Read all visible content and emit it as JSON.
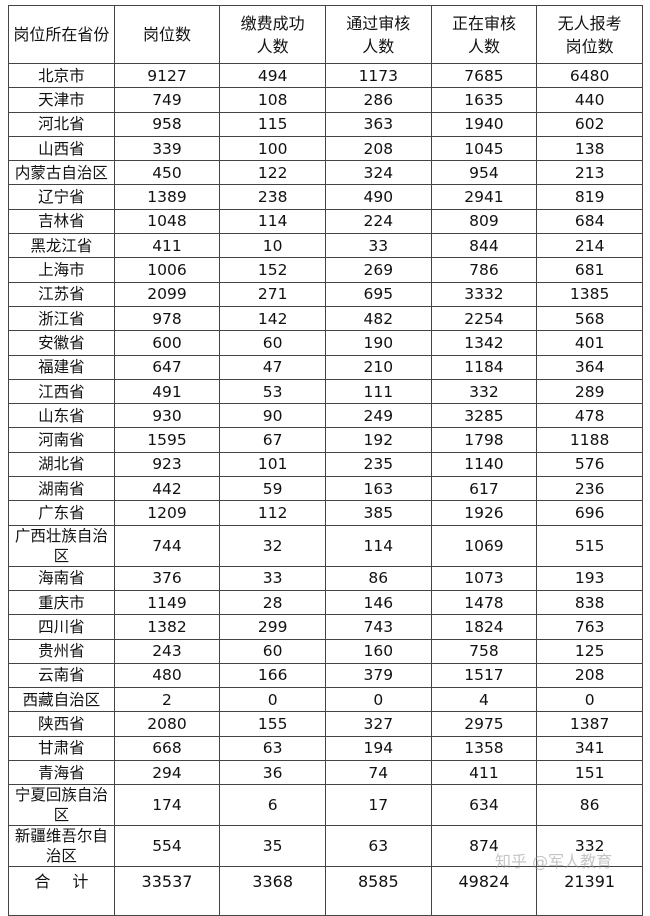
{
  "table": {
    "headers": [
      "岗位所在省份",
      "岗位数",
      "缴费成功\n人数",
      "通过审核\n人数",
      "正在审核\n人数",
      "无人报考\n岗位数"
    ],
    "rows": [
      [
        "北京市",
        "9127",
        "494",
        "1173",
        "7685",
        "6480"
      ],
      [
        "天津市",
        "749",
        "108",
        "286",
        "1635",
        "440"
      ],
      [
        "河北省",
        "958",
        "115",
        "363",
        "1940",
        "602"
      ],
      [
        "山西省",
        "339",
        "100",
        "208",
        "1045",
        "138"
      ],
      [
        "内蒙古自治区",
        "450",
        "122",
        "324",
        "954",
        "213"
      ],
      [
        "辽宁省",
        "1389",
        "238",
        "490",
        "2941",
        "819"
      ],
      [
        "吉林省",
        "1048",
        "114",
        "224",
        "809",
        "684"
      ],
      [
        "黑龙江省",
        "411",
        "10",
        "33",
        "844",
        "214"
      ],
      [
        "上海市",
        "1006",
        "152",
        "269",
        "786",
        "681"
      ],
      [
        "江苏省",
        "2099",
        "271",
        "695",
        "3332",
        "1385"
      ],
      [
        "浙江省",
        "978",
        "142",
        "482",
        "2254",
        "568"
      ],
      [
        "安徽省",
        "600",
        "60",
        "190",
        "1342",
        "401"
      ],
      [
        "福建省",
        "647",
        "47",
        "210",
        "1184",
        "364"
      ],
      [
        "江西省",
        "491",
        "53",
        "111",
        "332",
        "289"
      ],
      [
        "山东省",
        "930",
        "90",
        "249",
        "3285",
        "478"
      ],
      [
        "河南省",
        "1595",
        "67",
        "192",
        "1798",
        "1188"
      ],
      [
        "湖北省",
        "923",
        "101",
        "235",
        "1140",
        "576"
      ],
      [
        "湖南省",
        "442",
        "59",
        "163",
        "617",
        "236"
      ],
      [
        "广东省",
        "1209",
        "112",
        "385",
        "1926",
        "696"
      ],
      [
        "广西壮族自治区",
        "744",
        "32",
        "114",
        "1069",
        "515"
      ],
      [
        "海南省",
        "376",
        "33",
        "86",
        "1073",
        "193"
      ],
      [
        "重庆市",
        "1149",
        "28",
        "146",
        "1478",
        "838"
      ],
      [
        "四川省",
        "1382",
        "299",
        "743",
        "1824",
        "763"
      ],
      [
        "贵州省",
        "243",
        "60",
        "160",
        "758",
        "125"
      ],
      [
        "云南省",
        "480",
        "166",
        "379",
        "1517",
        "208"
      ],
      [
        "西藏自治区",
        "2",
        "0",
        "0",
        "4",
        "0"
      ],
      [
        "陕西省",
        "2080",
        "155",
        "327",
        "2975",
        "1387"
      ],
      [
        "甘肃省",
        "668",
        "63",
        "194",
        "1358",
        "341"
      ],
      [
        "青海省",
        "294",
        "36",
        "74",
        "411",
        "151"
      ],
      [
        "宁夏回族自治区",
        "174",
        "6",
        "17",
        "634",
        "86"
      ],
      [
        "新疆维吾尔自治区",
        "554",
        "35",
        "63",
        "874",
        "332"
      ]
    ],
    "total": [
      "合计",
      "33537",
      "3368",
      "8585",
      "49824",
      "21391"
    ]
  },
  "watermark": "知乎 @军人教育"
}
